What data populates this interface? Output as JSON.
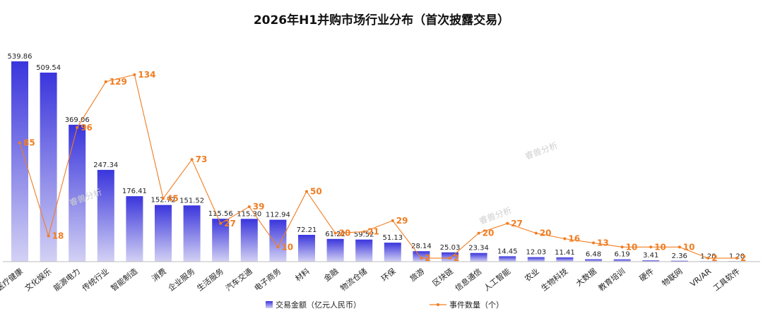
{
  "chart_data": {
    "type": "bar",
    "title": "2026年H1并购市场行业分布（首次披露交易）",
    "categories": [
      "医疗健康",
      "文化娱乐",
      "能源电力",
      "传统行业",
      "智能制造",
      "消费",
      "企业服务",
      "生活服务",
      "汽车交通",
      "电子商务",
      "材料",
      "金融",
      "物流仓储",
      "环保",
      "旅游",
      "区块链",
      "信息通信",
      "人工智能",
      "农业",
      "生物科技",
      "大数据",
      "教育培训",
      "硬件",
      "物联网",
      "VR/AR",
      "工具软件"
    ],
    "series": [
      {
        "name": "交易金额（亿元人民币）",
        "kind": "bar",
        "values": [
          539.86,
          509.54,
          369.06,
          247.34,
          176.41,
          152.72,
          151.52,
          115.56,
          115.3,
          112.94,
          72.21,
          61.22,
          59.52,
          51.13,
          28.14,
          25.03,
          23.34,
          14.45,
          12.03,
          11.41,
          6.48,
          6.19,
          3.41,
          2.36,
          1.2,
          1.2
        ],
        "labels": [
          "539.86",
          "509.54",
          "369.06",
          "247.34",
          "176.41",
          "152.72",
          "151.52",
          "115.56",
          "115.30",
          "112.94",
          "72.21",
          "61.22",
          "59.52",
          "51.13",
          "28.14",
          "25.03",
          "23.34",
          "14.45",
          "12.03",
          "11.41",
          "6.48",
          "6.19",
          "3.41",
          "2.36",
          "1.20",
          "1.20"
        ],
        "color": "#3f3fdc"
      },
      {
        "name": "事件数量（个）",
        "kind": "line",
        "values": [
          85,
          18,
          96,
          129,
          134,
          45,
          73,
          27,
          39,
          10,
          50,
          20,
          21,
          29,
          2,
          2,
          20,
          27,
          20,
          16,
          13,
          10,
          10,
          10,
          2,
          2
        ],
        "color": "#f07d22"
      }
    ],
    "legend_position": "bottom",
    "grid": false,
    "watermark": "睿兽分析"
  }
}
